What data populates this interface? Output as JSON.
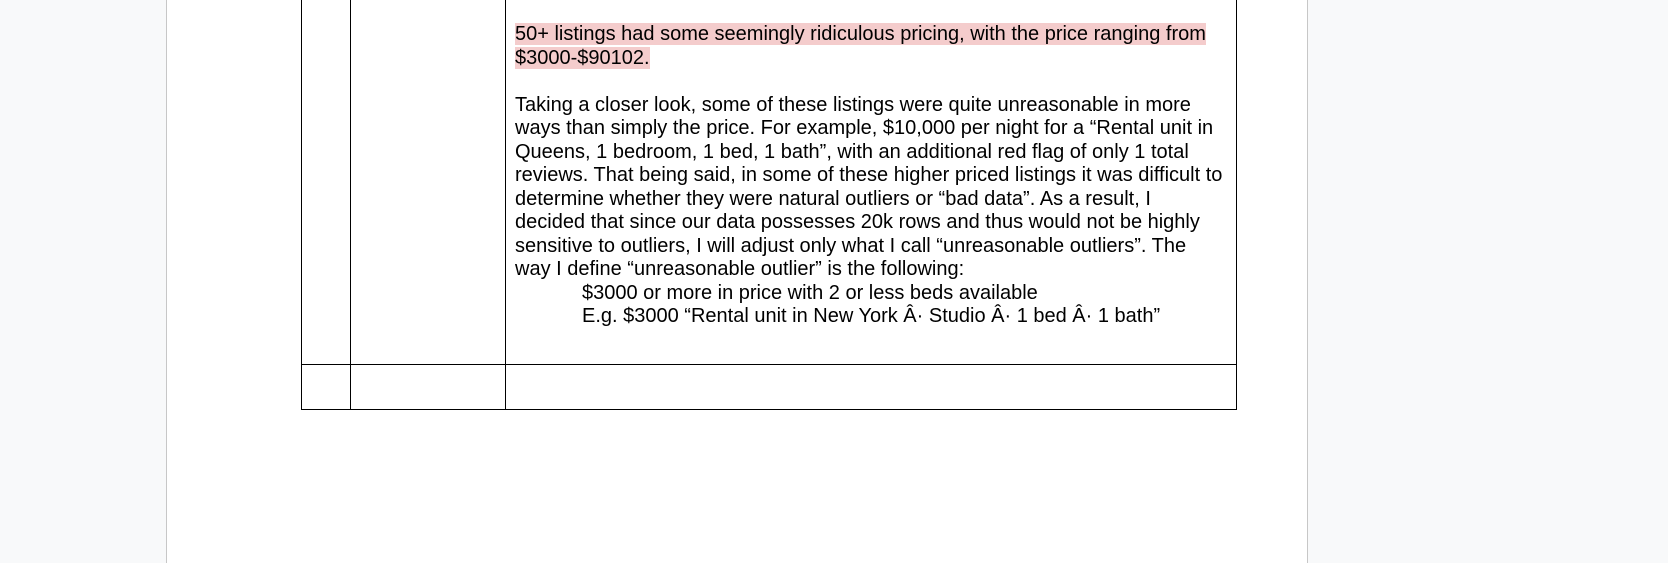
{
  "document": {
    "table": {
      "row1": {
        "highlight_text": "50+ listings had some seemingly ridiculous pricing, with the price ranging from $3000-$90102.",
        "paragraph": "Taking a closer look, some of these listings were quite unreasonable in more ways than simply the price. For example, $10,000 per night for a “Rental unit in Queens, 1 bedroom, 1 bed, 1 bath”, with an additional red flag of only 1 total reviews. That being said, in some of these higher priced listings it was difficult to determine whether they were natural outliers or “bad data”. As a result, I decided that since our data possesses 20k rows and thus would not be highly sensitive to outliers, I will adjust only what I call “unreasonable outliers”. The way I define “unreasonable outlier” is the following:",
        "indent_line1": "$3000 or more in price with 2 or less beds available",
        "indent_line2": "E.g. $3000 “Rental unit in New York Â· Studio Â· 1 bed Â· 1 bath”"
      }
    },
    "colors": {
      "highlight": "#f4cccc",
      "page_background": "#ffffff",
      "canvas_background": "#f8f9fa"
    }
  }
}
